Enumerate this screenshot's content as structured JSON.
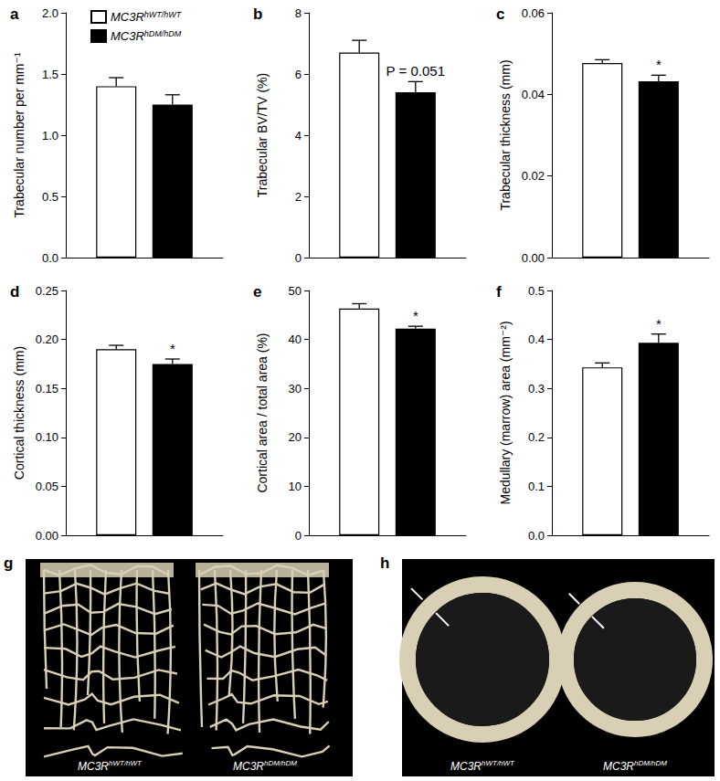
{
  "chart_data": [
    {
      "type": "bar",
      "title": "a",
      "ylabel": "Trabecular number per mm⁻¹",
      "categories": [
        null
      ],
      "series": [
        {
          "name": "MC3RhWT/hWT",
          "color": "#ffffff",
          "values": [
            1.4
          ],
          "errors": [
            0.07
          ]
        },
        {
          "name": "MC3RhDM/hDM",
          "color": "#000000",
          "values": [
            1.25
          ],
          "errors": [
            0.08
          ]
        }
      ],
      "ylim": [
        0,
        2
      ],
      "yticks": [
        {
          "value": 0,
          "label": "0.0"
        },
        0.5,
        {
          "value": 1,
          "label": "1.0"
        },
        1.5,
        {
          "value": 2,
          "label": "2.0"
        }
      ],
      "legend": "top",
      "tick_labels": "y",
      "grid": false
    },
    {
      "type": "bar",
      "title": "b",
      "ylabel": "Trabecular BV/TV (%)",
      "categories": [
        null
      ],
      "series": [
        {
          "name": "MC3RhWT/hWT",
          "color": "#ffffff",
          "values": [
            6.7
          ],
          "errors": [
            0.4
          ]
        },
        {
          "name": "MC3RhDM/hDM",
          "color": "#000000",
          "values": [
            5.4
          ],
          "errors": [
            0.35
          ],
          "annotation": "P = 0.051"
        }
      ],
      "ylim": [
        0,
        8
      ],
      "yticks": [
        0,
        2,
        4,
        6,
        8
      ],
      "tick_labels": "y",
      "grid": false
    },
    {
      "type": "bar",
      "title": "c",
      "ylabel": "Trabecular thickness (mm)",
      "categories": [
        null
      ],
      "series": [
        {
          "name": "MC3RhWT/hWT",
          "color": "#ffffff",
          "values": [
            0.0477
          ],
          "errors": [
            0.0008
          ]
        },
        {
          "name": "MC3RhDM/hDM",
          "color": "#000000",
          "values": [
            0.0432
          ],
          "errors": [
            0.0015
          ],
          "annotation": "*"
        }
      ],
      "ylim": [
        0,
        0.06
      ],
      "yticks": [
        {
          "value": 0,
          "label": "0.00"
        },
        {
          "value": 0.02,
          "label": "0.02"
        },
        {
          "value": 0.04,
          "label": "0.04"
        },
        {
          "value": 0.06,
          "label": "0.06"
        }
      ],
      "tick_labels": "y",
      "grid": false
    },
    {
      "type": "bar",
      "title": "d",
      "ylabel": "Cortical thickness (mm)",
      "categories": [
        null
      ],
      "series": [
        {
          "name": "MC3RhWT/hWT",
          "color": "#ffffff",
          "values": [
            0.19
          ],
          "errors": [
            0.004
          ]
        },
        {
          "name": "MC3RhDM/hDM",
          "color": "#000000",
          "values": [
            0.175
          ],
          "errors": [
            0.005
          ],
          "annotation": "*"
        }
      ],
      "ylim": [
        0,
        0.25
      ],
      "yticks": [
        {
          "value": 0,
          "label": "0.00"
        },
        0.05,
        {
          "value": 0.1,
          "label": "0.10"
        },
        0.15,
        {
          "value": 0.2,
          "label": "0.20"
        },
        0.25
      ],
      "tick_labels": "y",
      "grid": false
    },
    {
      "type": "bar",
      "title": "e",
      "ylabel": "Cortical area / total area (%)",
      "categories": [
        null
      ],
      "series": [
        {
          "name": "MC3RhWT/hWT",
          "color": "#ffffff",
          "values": [
            46.3
          ],
          "errors": [
            1.0
          ]
        },
        {
          "name": "MC3RhDM/hDM",
          "color": "#000000",
          "values": [
            42.2
          ],
          "errors": [
            0.5
          ],
          "annotation": "*"
        }
      ],
      "ylim": [
        0,
        50
      ],
      "yticks": [
        0,
        10,
        20,
        30,
        40,
        50
      ],
      "tick_labels": "y",
      "grid": false
    },
    {
      "type": "bar",
      "title": "f",
      "ylabel": "Medullary (marrow) area (mm⁻²)",
      "categories": [
        null
      ],
      "series": [
        {
          "name": "MC3RhWT/hWT",
          "color": "#ffffff",
          "values": [
            0.343
          ],
          "errors": [
            0.009
          ]
        },
        {
          "name": "MC3RhDM/hDM",
          "color": "#000000",
          "values": [
            0.393
          ],
          "errors": [
            0.018
          ],
          "annotation": "*"
        }
      ],
      "ylim": [
        0,
        0.5
      ],
      "yticks": [
        {
          "value": 0,
          "label": "0.0"
        },
        0.1,
        0.2,
        0.3,
        0.4,
        0.5
      ],
      "tick_labels": "y",
      "grid": false
    }
  ],
  "images": [
    {
      "title": "g",
      "captions": [
        "MC3RhWT/hWT",
        "MC3RhDM/hDM"
      ]
    },
    {
      "title": "h",
      "captions": [
        "MC3RhWT/hWT",
        "MC3RhDM/hDM"
      ]
    }
  ]
}
